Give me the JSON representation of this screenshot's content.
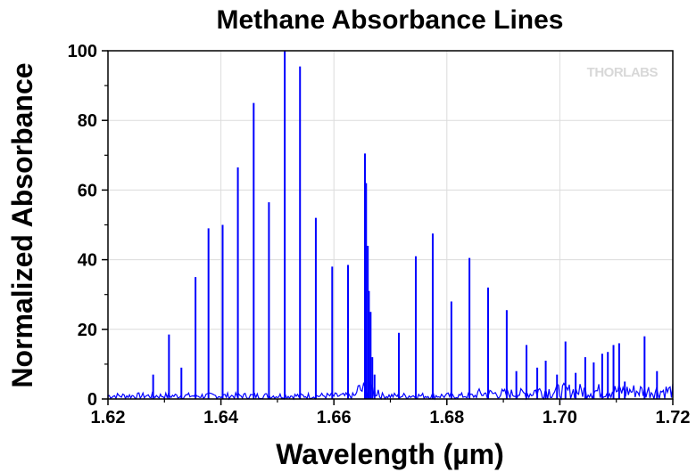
{
  "chart_data": {
    "type": "line",
    "title": "Methane Absorbance Lines",
    "xlabel": "Wavelength (µm)",
    "ylabel": "Normalized Absorbance",
    "xlim": [
      1.62,
      1.72
    ],
    "ylim": [
      0,
      100
    ],
    "x_ticks": [
      "1.62",
      "1.64",
      "1.66",
      "1.68",
      "1.70",
      "1.72"
    ],
    "y_ticks": [
      "0",
      "20",
      "40",
      "60",
      "80",
      "100"
    ],
    "grid": true,
    "line_color": "#0000ff",
    "series": [
      {
        "x": [
          1.628,
          1.6308,
          1.633,
          1.6355,
          1.6378,
          1.6403,
          1.643,
          1.6458,
          1.6485,
          1.6513,
          1.654,
          1.6568,
          1.6597,
          1.6625,
          1.6655,
          1.6657,
          1.666,
          1.6662,
          1.6665,
          1.6668,
          1.6672,
          1.6715,
          1.6745,
          1.6775,
          1.6808,
          1.684,
          1.6873,
          1.6906,
          1.6923,
          1.6941,
          1.696,
          1.6975,
          1.6995,
          1.701,
          1.7028,
          1.7045,
          1.706,
          1.7075,
          1.7085,
          1.7095,
          1.7105,
          1.7115,
          1.715,
          1.7172
        ],
        "y": [
          7,
          18.5,
          9,
          35,
          49,
          50,
          66.5,
          85,
          56.5,
          100,
          95.5,
          52,
          38,
          38.5,
          70.5,
          62,
          44,
          31,
          25,
          12,
          7,
          19,
          41,
          47.5,
          28,
          40.5,
          32,
          25.5,
          8,
          15.5,
          9,
          11,
          7,
          16.5,
          7.5,
          12,
          10.5,
          13,
          13.5,
          15.5,
          16,
          5,
          18,
          8
        ]
      }
    ],
    "watermark": "THORLABS"
  }
}
